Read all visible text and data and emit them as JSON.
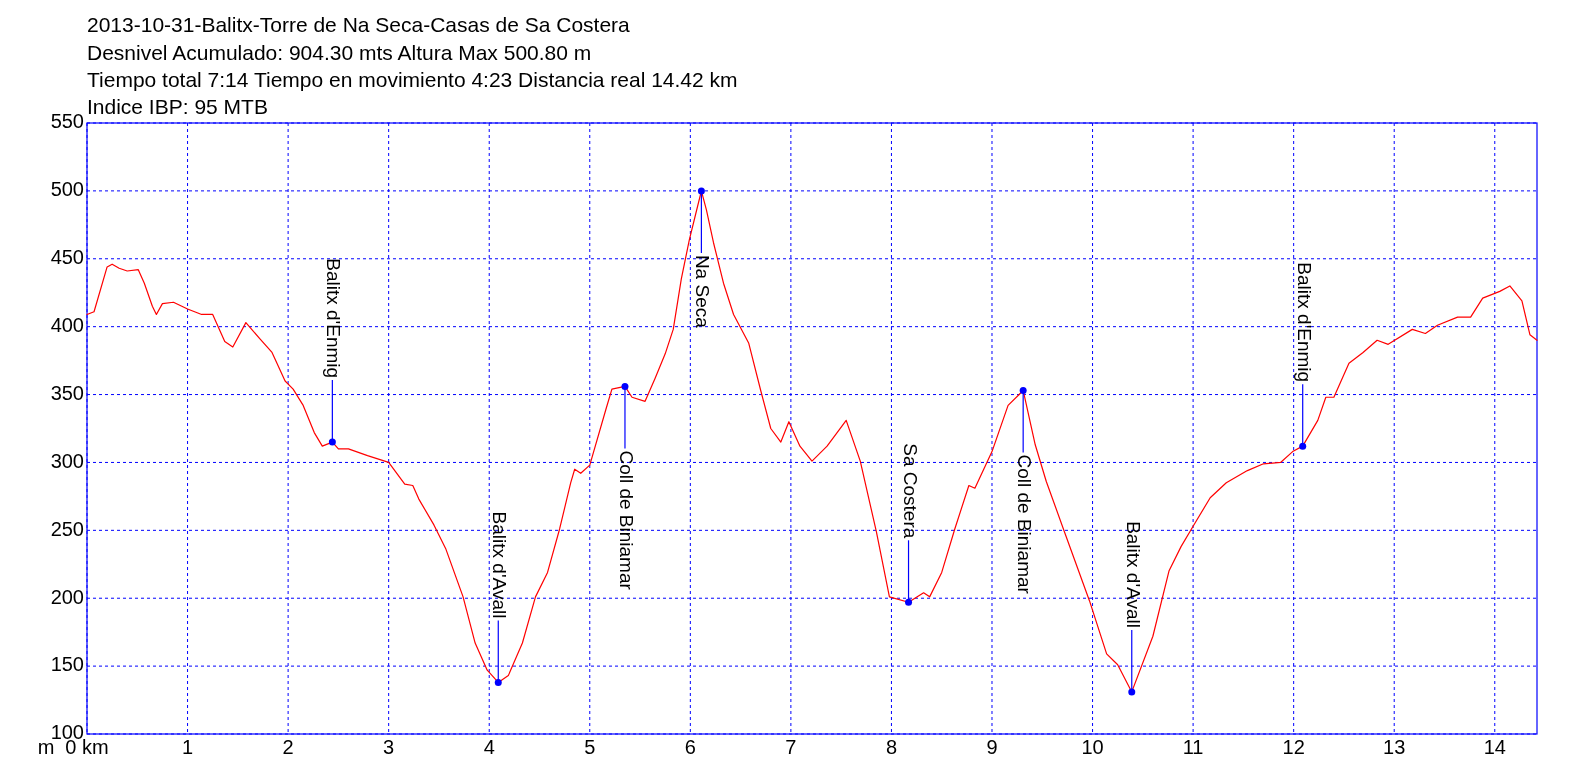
{
  "chart_data": {
    "type": "line",
    "title": "2013-10-31-Balitx-Torre de Na Seca-Casas de Sa Costera",
    "annotations": [
      "Desnivel Acumulado: 904.30 mts  Altura Max 500.80 m",
      "Tiempo total 7:14 Tiempo en movimiento 4:23 Distancia real 14.42 km",
      "Indice IBP: 95 MTB",
      {
        "text": "Balitx d'Enmig",
        "x": 2.44,
        "y": 315
      },
      {
        "text": "Balitx d'Avall",
        "x": 4.09,
        "y": 138
      },
      {
        "text": "Coll de Biniamar",
        "x": 5.35,
        "y": 356
      },
      {
        "text": "Na Seca",
        "x": 6.11,
        "y": 500
      },
      {
        "text": "Sa Costera",
        "x": 8.17,
        "y": 197
      },
      {
        "text": "Coll de Biniamar",
        "x": 9.31,
        "y": 353
      },
      {
        "text": "Balitx d'Avall",
        "x": 10.39,
        "y": 131
      },
      {
        "text": "Balitx d'Enmig",
        "x": 12.09,
        "y": 312
      }
    ],
    "ylabel": "m",
    "series": [
      {
        "color": "#ff0000",
        "x": [
          0,
          0.07,
          0.2,
          0.25,
          0.32,
          0.4,
          0.51,
          0.57,
          0.65,
          0.69,
          0.75,
          0.86,
          1.0,
          1.14,
          1.25,
          1.37,
          1.45,
          1.58,
          1.72,
          1.84,
          1.97,
          2.05,
          2.15,
          2.26,
          2.34,
          2.44,
          2.5,
          2.6,
          2.79,
          3.0,
          3.16,
          3.24,
          3.3,
          3.45,
          3.57,
          3.74,
          3.86,
          3.98,
          4.09,
          4.19,
          4.33,
          4.46,
          4.58,
          4.7,
          4.81,
          4.85,
          4.91,
          5.0,
          5.16,
          5.22,
          5.35,
          5.42,
          5.55,
          5.65,
          5.75,
          5.83,
          5.91,
          5.99,
          6.06,
          6.11,
          6.16,
          6.23,
          6.33,
          6.43,
          6.58,
          6.7,
          6.8,
          6.9,
          6.98,
          7.09,
          7.21,
          7.36,
          7.48,
          7.55,
          7.69,
          7.85,
          7.98,
          8.17,
          8.32,
          8.38,
          8.5,
          8.63,
          8.77,
          8.83,
          9.0,
          9.16,
          9.31,
          9.43,
          9.54,
          9.72,
          9.97,
          10.14,
          10.25,
          10.39,
          10.6,
          10.76,
          10.88,
          11.0,
          11.17,
          11.33,
          11.54,
          11.7,
          11.87,
          11.99,
          12.09,
          12.24,
          12.32,
          12.4,
          12.55,
          12.69,
          12.83,
          12.94,
          13.18,
          13.31,
          13.43,
          13.63,
          13.76,
          13.88,
          14.05,
          14.15,
          14.27,
          14.35,
          14.42
        ],
        "values": [
          409,
          411,
          444,
          446,
          443,
          441,
          442,
          432,
          415,
          409,
          417,
          418,
          413,
          409,
          409,
          389,
          385,
          403,
          391,
          381,
          360,
          354,
          342,
          322,
          312,
          315,
          310,
          310,
          305,
          300,
          284,
          283,
          273,
          254,
          236,
          201,
          167,
          147,
          138,
          143,
          167,
          201,
          219,
          251,
          285,
          295,
          292,
          298,
          339,
          354,
          356,
          348,
          345,
          362,
          380,
          398,
          435,
          464,
          485,
          500,
          486,
          462,
          432,
          409,
          388,
          353,
          325,
          315,
          330,
          312,
          301,
          312,
          324,
          331,
          301,
          249,
          201,
          197,
          204,
          201,
          219,
          251,
          283,
          281,
          308,
          342,
          353,
          313,
          286,
          249,
          198,
          159,
          151,
          131,
          172,
          220,
          238,
          253,
          274,
          285,
          294,
          299,
          300,
          308,
          312,
          331,
          348,
          348,
          373,
          381,
          390,
          387,
          398,
          395,
          401,
          407,
          407,
          421,
          426,
          430,
          419,
          394,
          390
        ]
      }
    ],
    "xlim": [
      0,
      14.42
    ],
    "ylim": [
      100,
      550
    ],
    "xticks": [
      {
        "value": 0,
        "label": "0 km"
      },
      1,
      2,
      3,
      4,
      5,
      6,
      7,
      8,
      9,
      10,
      11,
      12,
      13,
      14
    ],
    "yticks": [
      100,
      150,
      200,
      250,
      300,
      350,
      400,
      450,
      500,
      550
    ],
    "grid": true,
    "line_style": "solid"
  }
}
